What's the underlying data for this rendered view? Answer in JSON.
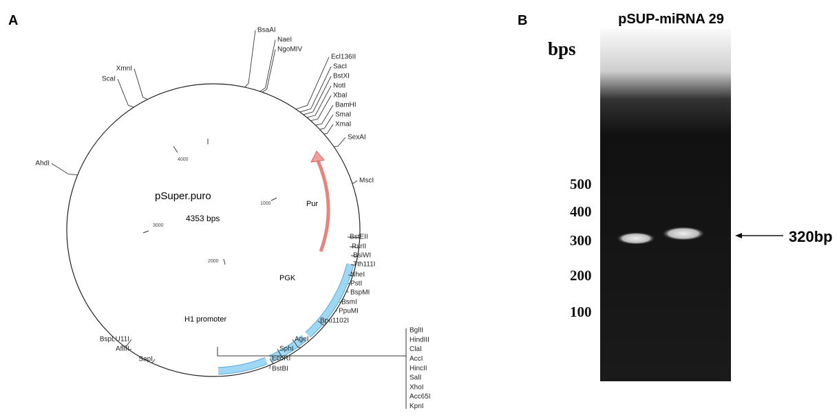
{
  "panel_a": {
    "label": "A",
    "plasmid": {
      "name": "pSuper.puro",
      "size": "4353 bps",
      "scale_ticks": [
        "1000",
        "2000",
        "3000",
        "4000"
      ],
      "features": [
        "Pur",
        "PGK",
        "H1 promoter"
      ],
      "sites": [
        "BsaAI",
        "NaeI",
        "NgoMIV",
        "Ecl136II",
        "SacI",
        "BstXI",
        "NotI",
        "XbaI",
        "BamHI",
        "SmaI",
        "XmaI",
        "SexAI",
        "MscI",
        "BstEII",
        "RsrII",
        "BsiWI",
        "Tth111I",
        "NheI",
        "PstI",
        "BspMI",
        "BsmI",
        "PpuMI",
        "Bpu1102I",
        "AgeI",
        "SphI",
        "EcoRI",
        "BstBI",
        "SapI",
        "AflIII",
        "BspLU11I",
        "AhdI",
        "ScaI",
        "XmnI"
      ],
      "mcs_sites": [
        "BglII",
        "HindIII",
        "ClaI",
        "AccI",
        "HincII",
        "SalI",
        "XhoI",
        "Acc65I",
        "KpnI"
      ]
    }
  },
  "panel_b": {
    "label": "B",
    "title": "pSUP-miRNA 29",
    "axis_label": "bps",
    "markers": [
      "500",
      "400",
      "300",
      "200",
      "100"
    ],
    "band_label": "320bp"
  }
}
